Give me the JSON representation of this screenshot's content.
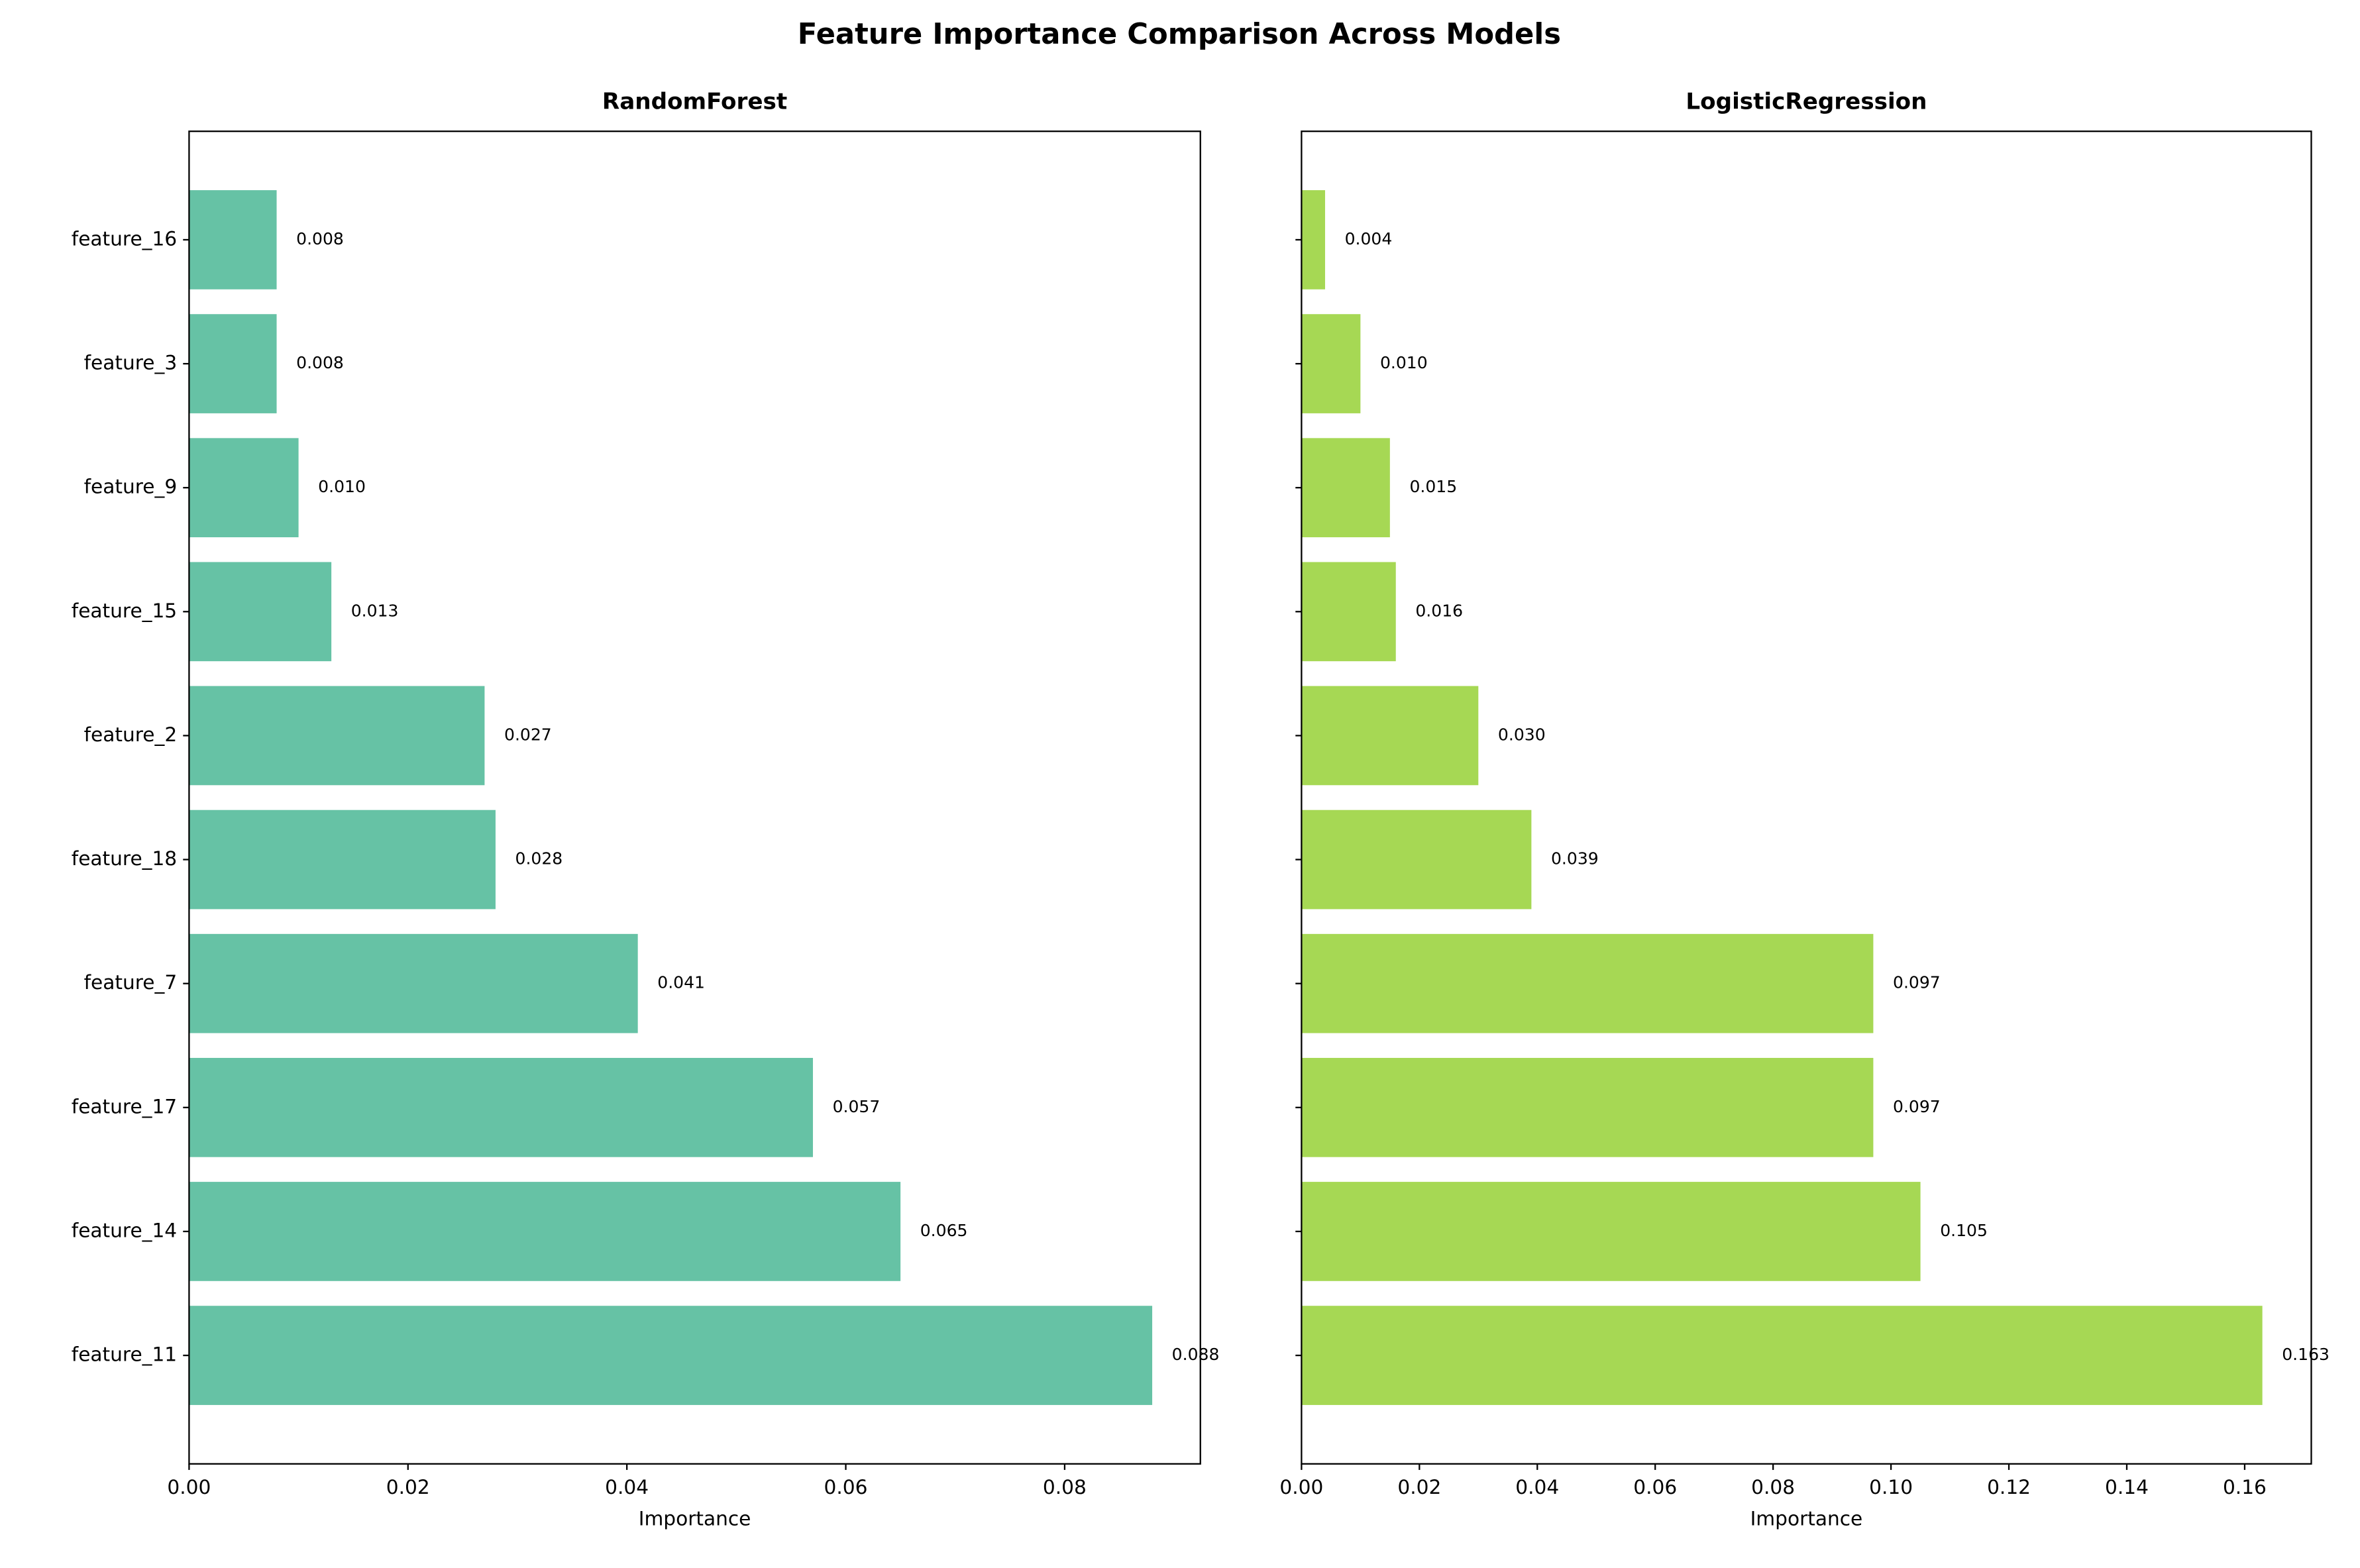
{
  "title": "Feature Importance Comparison Across Models",
  "chart_data": [
    {
      "type": "barh",
      "title": "RandomForest",
      "xlabel": "Importance",
      "color": "#66c2a5",
      "categories": [
        "feature_16",
        "feature_3",
        "feature_9",
        "feature_15",
        "feature_2",
        "feature_18",
        "feature_7",
        "feature_17",
        "feature_14",
        "feature_11"
      ],
      "values": [
        0.008,
        0.008,
        0.01,
        0.013,
        0.027,
        0.028,
        0.041,
        0.057,
        0.065,
        0.088
      ],
      "value_labels": [
        "0.008",
        "0.008",
        "0.010",
        "0.013",
        "0.027",
        "0.028",
        "0.041",
        "0.057",
        "0.065",
        "0.088"
      ],
      "xlim": [
        0,
        0.0924
      ],
      "xticks": [
        {
          "value": 0,
          "label": "0.00"
        },
        0.02,
        0.04,
        0.06,
        0.08
      ]
    },
    {
      "type": "barh",
      "title": "LogisticRegression",
      "xlabel": "Importance",
      "color": "#a6d854",
      "categories": [
        null,
        null,
        null,
        null,
        null,
        null,
        null,
        null,
        null,
        null
      ],
      "values": [
        0.004,
        0.01,
        0.015,
        0.016,
        0.03,
        0.039,
        0.097,
        0.097,
        0.105,
        0.163
      ],
      "value_labels": [
        "0.004",
        "0.010",
        "0.015",
        "0.016",
        "0.030",
        "0.039",
        "0.097",
        "0.097",
        "0.105",
        "0.163"
      ],
      "xlim": [
        0,
        0.1713
      ],
      "xticks": [
        {
          "value": 0,
          "label": "0.00"
        },
        0.02,
        0.04,
        0.06,
        0.08,
        {
          "value": 0.1,
          "label": "0.10"
        },
        0.12,
        0.14,
        0.16
      ]
    }
  ]
}
